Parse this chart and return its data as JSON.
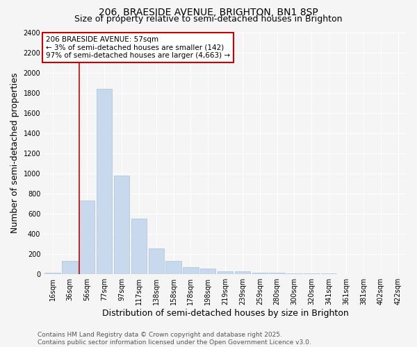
{
  "title": "206, BRAESIDE AVENUE, BRIGHTON, BN1 8SP",
  "subtitle": "Size of property relative to semi-detached houses in Brighton",
  "xlabel": "Distribution of semi-detached houses by size in Brighton",
  "ylabel": "Number of semi-detached properties",
  "categories": [
    "16sqm",
    "36sqm",
    "56sqm",
    "77sqm",
    "97sqm",
    "117sqm",
    "138sqm",
    "158sqm",
    "178sqm",
    "198sqm",
    "219sqm",
    "239sqm",
    "259sqm",
    "280sqm",
    "300sqm",
    "320sqm",
    "341sqm",
    "361sqm",
    "381sqm",
    "402sqm",
    "422sqm"
  ],
  "values": [
    15,
    130,
    730,
    1840,
    980,
    550,
    250,
    130,
    70,
    55,
    25,
    25,
    15,
    10,
    5,
    2,
    2,
    0,
    0,
    0,
    0
  ],
  "bar_color": "#c8d9ed",
  "bar_edge_color": "#a8c0de",
  "highlight_line_index": 2,
  "highlight_line_color": "#cc0000",
  "annotation_title": "206 BRAESIDE AVENUE: 57sqm",
  "annotation_line1": "← 3% of semi-detached houses are smaller (142)",
  "annotation_line2": "97% of semi-detached houses are larger (4,663) →",
  "annotation_box_facecolor": "#ffffff",
  "annotation_box_edgecolor": "#cc0000",
  "ylim": [
    0,
    2400
  ],
  "yticks": [
    0,
    200,
    400,
    600,
    800,
    1000,
    1200,
    1400,
    1600,
    1800,
    2000,
    2200,
    2400
  ],
  "footer_line1": "Contains HM Land Registry data © Crown copyright and database right 2025.",
  "footer_line2": "Contains public sector information licensed under the Open Government Licence v3.0.",
  "bg_color": "#f5f5f5",
  "grid_color": "#ffffff",
  "title_fontsize": 10,
  "subtitle_fontsize": 9,
  "axis_label_fontsize": 9,
  "tick_fontsize": 7,
  "annotation_fontsize": 7.5,
  "footer_fontsize": 6.5
}
